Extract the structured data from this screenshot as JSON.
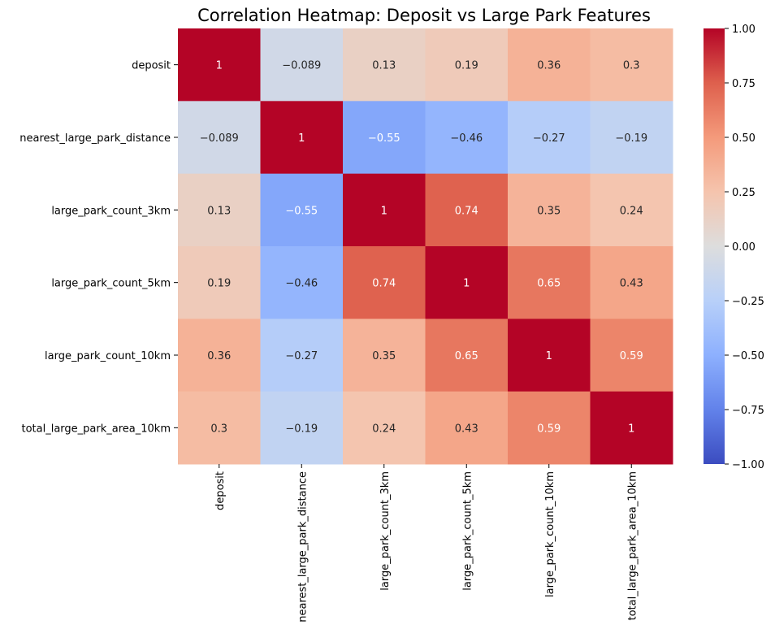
{
  "chart_data": {
    "type": "heatmap",
    "title": "Correlation Heatmap: Deposit vs Large Park Features",
    "row_labels": [
      "deposit",
      "nearest_large_park_distance",
      "large_park_count_3km",
      "large_park_count_5km",
      "large_park_count_10km",
      "total_large_park_area_10km"
    ],
    "column_labels": [
      "deposit",
      "nearest_large_park_distance",
      "large_park_count_3km",
      "large_park_count_5km",
      "large_park_count_10km",
      "total_large_park_area_10km"
    ],
    "values": [
      [
        1,
        -0.089,
        0.13,
        0.19,
        0.36,
        0.3
      ],
      [
        -0.089,
        1,
        -0.55,
        -0.46,
        -0.27,
        -0.19
      ],
      [
        0.13,
        -0.55,
        1,
        0.74,
        0.35,
        0.24
      ],
      [
        0.19,
        -0.46,
        0.74,
        1,
        0.65,
        0.43
      ],
      [
        0.36,
        -0.27,
        0.35,
        0.65,
        1,
        0.59
      ],
      [
        0.3,
        -0.19,
        0.24,
        0.43,
        0.59,
        1
      ]
    ],
    "colormap": "coolwarm",
    "vmin": -1,
    "vmax": 1,
    "colorbar_ticks": [
      "1.00",
      "0.75",
      "0.50",
      "0.25",
      "0.00",
      "−0.25",
      "−0.50",
      "−0.75",
      "−1.00"
    ],
    "colorbar_tick_values": [
      1,
      0.75,
      0.5,
      0.25,
      0,
      -0.25,
      -0.5,
      -0.75,
      -1
    ],
    "annotations": true
  }
}
